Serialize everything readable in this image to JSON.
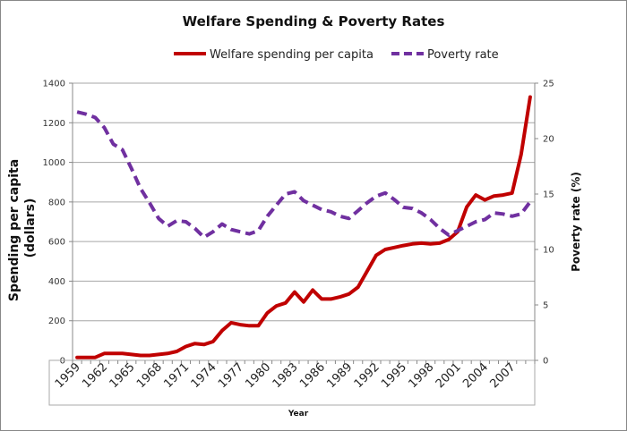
{
  "chart_data": {
    "type": "line",
    "title": "Welfare Spending & Poverty Rates",
    "xlabel": "Year",
    "ylabel": "Spending per capita (dollars)",
    "ylabel_lines": [
      "Spending per capita",
      "(dollars)"
    ],
    "y2label": "Poverty rate (%)",
    "ylim": [
      0,
      1400
    ],
    "y2lim": [
      0,
      25
    ],
    "yticks": [
      0,
      200,
      400,
      600,
      800,
      1000,
      1200,
      1400
    ],
    "y2ticks": [
      0,
      5,
      10,
      15,
      20,
      25
    ],
    "grid": true,
    "legend": "top",
    "x": [
      1959,
      1960,
      1961,
      1962,
      1963,
      1964,
      1965,
      1966,
      1967,
      1968,
      1969,
      1970,
      1971,
      1972,
      1973,
      1974,
      1975,
      1976,
      1977,
      1978,
      1979,
      1980,
      1981,
      1982,
      1983,
      1984,
      1985,
      1986,
      1987,
      1988,
      1989,
      1990,
      1991,
      1992,
      1993,
      1994,
      1995,
      1996,
      1997,
      1998,
      1999,
      2000,
      2001,
      2002,
      2003,
      2004,
      2005,
      2006,
      2007,
      2008,
      2009
    ],
    "xtick_labels": [
      "1959",
      "1962",
      "1965",
      "1968",
      "1971",
      "1974",
      "1977",
      "1980",
      "1983",
      "1986",
      "1989",
      "1992",
      "1995",
      "1998",
      "2001",
      "2004",
      "2007"
    ],
    "series": [
      {
        "name": "Welfare spending per capita",
        "axis": "left",
        "color": "#c00000",
        "style": "solid",
        "values": [
          15,
          15,
          15,
          35,
          35,
          35,
          30,
          25,
          25,
          30,
          35,
          45,
          70,
          85,
          80,
          95,
          150,
          190,
          180,
          175,
          175,
          240,
          275,
          290,
          345,
          295,
          355,
          310,
          310,
          320,
          335,
          370,
          450,
          530,
          560,
          570,
          580,
          588,
          592,
          588,
          592,
          610,
          650,
          775,
          835,
          810,
          830,
          835,
          845,
          1040,
          1330
        ]
      },
      {
        "name": "Poverty rate",
        "axis": "right",
        "color": "#7030a0",
        "style": "dashed",
        "values": [
          22.4,
          22.2,
          21.9,
          21.0,
          19.5,
          19.0,
          17.3,
          15.5,
          14.2,
          12.8,
          12.1,
          12.6,
          12.5,
          11.9,
          11.1,
          11.6,
          12.3,
          11.8,
          11.6,
          11.4,
          11.7,
          13.0,
          14.0,
          15.0,
          15.2,
          14.4,
          14.0,
          13.6,
          13.4,
          13.0,
          12.8,
          13.5,
          14.2,
          14.8,
          15.1,
          14.5,
          13.8,
          13.7,
          13.3,
          12.7,
          11.9,
          11.3,
          11.7,
          12.1,
          12.5,
          12.7,
          13.3,
          13.2,
          13.0,
          13.2,
          14.3
        ]
      }
    ]
  }
}
